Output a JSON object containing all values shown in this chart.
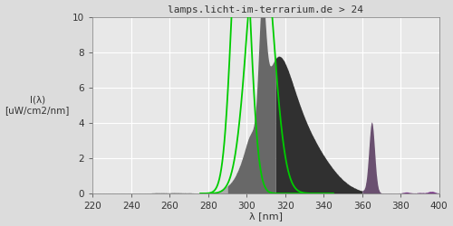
{
  "title": "lamps.licht-im-terrarium.de > 24",
  "xlabel": "λ [nm]",
  "ylabel_line1": "I(λ)",
  "ylabel_line2": "[uW/cm2/nm]",
  "xlim": [
    220,
    400
  ],
  "ylim": [
    0,
    10
  ],
  "yticks": [
    0,
    2,
    4,
    6,
    8,
    10
  ],
  "xticks": [
    220,
    240,
    260,
    280,
    300,
    320,
    340,
    360,
    380,
    400
  ],
  "bg_color": "#dcdcdc",
  "plot_bg": "#e8e8e8",
  "grid_color": "#ffffff",
  "title_color": "#333333",
  "axis_color": "#333333",
  "green_color": "#00cc00",
  "segments": [
    [
      220,
      290,
      "#aaaaaa"
    ],
    [
      290,
      315,
      "#686868"
    ],
    [
      315,
      360,
      "#303030"
    ],
    [
      360,
      370,
      "#6a5070"
    ],
    [
      370,
      400,
      "#7a3888"
    ]
  ]
}
